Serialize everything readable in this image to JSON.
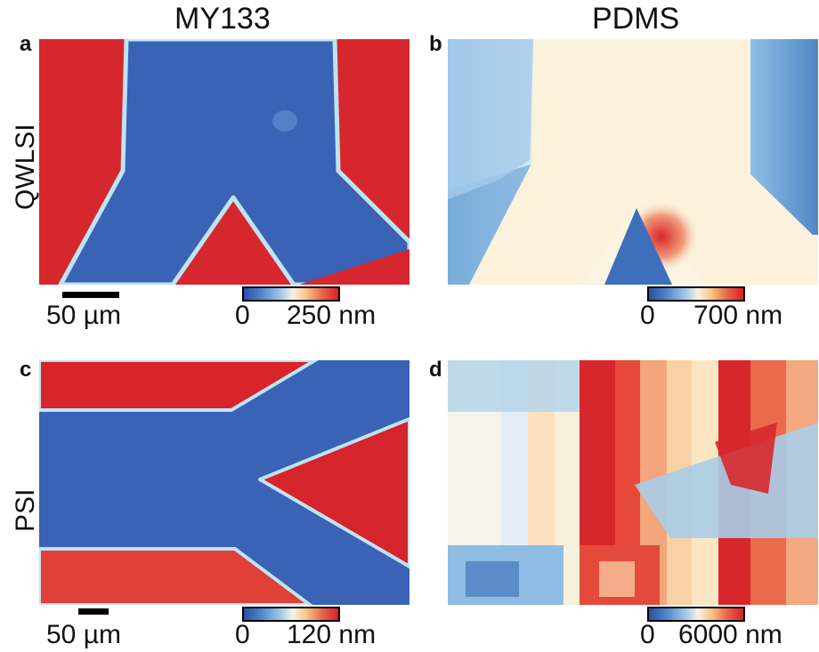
{
  "columns": [
    "MY133",
    "PDMS"
  ],
  "rows": [
    "QWLSI",
    "PSI"
  ],
  "panels": {
    "a": {
      "letter": "a",
      "cbar_min": "0",
      "cbar_max": "250 nm",
      "scale_label": "50 µm"
    },
    "b": {
      "letter": "b",
      "cbar_min": "0",
      "cbar_max": "700 nm"
    },
    "c": {
      "letter": "c",
      "cbar_min": "0",
      "cbar_max": "120 nm",
      "scale_label": "50 µm"
    },
    "d": {
      "letter": "d",
      "cbar_min": "0",
      "cbar_max": "6000 nm"
    }
  },
  "colors": {
    "low": "#2c4fa3",
    "mid": "#f5f2e6",
    "high": "#d81f27"
  }
}
